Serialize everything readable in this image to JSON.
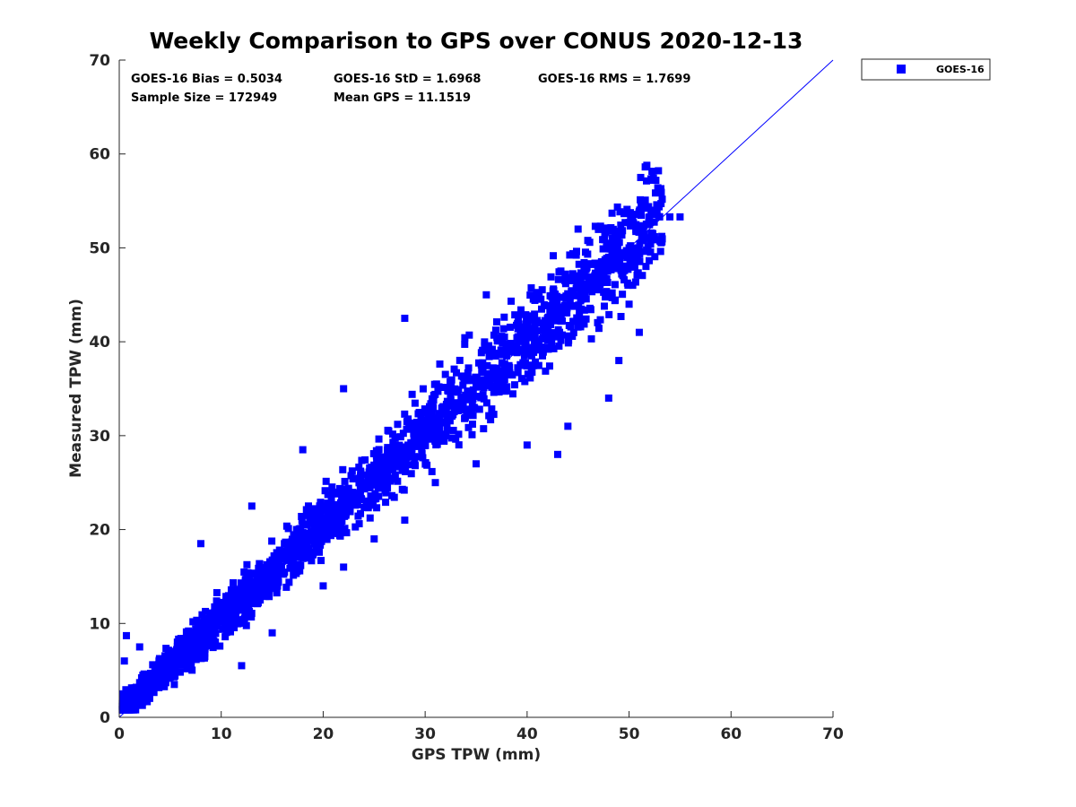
{
  "chart_data": {
    "type": "scatter",
    "title": "Weekly Comparison to GPS over CONUS 2020-12-13",
    "xlabel": "GPS TPW (mm)",
    "ylabel": "Measured TPW (mm)",
    "xlim": [
      0,
      70
    ],
    "ylim": [
      0,
      70
    ],
    "xticks": [
      "0",
      "10",
      "20",
      "30",
      "40",
      "50",
      "60",
      "70"
    ],
    "yticks": [
      "0",
      "10",
      "20",
      "30",
      "40",
      "50",
      "60",
      "70"
    ],
    "grid": false,
    "legend_position": "top-right-outside",
    "color": "#0000ff",
    "stats": {
      "bias": "GOES-16 Bias = 0.5034",
      "std": "GOES-16 StD = 1.6968",
      "rms": "GOES-16 RMS = 1.7699",
      "sample_size": "Sample Size = 172949",
      "mean_gps": "Mean GPS = 11.1519"
    },
    "series": [
      {
        "name": "GOES-16",
        "marker": "square",
        "sample_size": 172949,
        "bias": 0.5034,
        "std": 1.6968,
        "rms": 1.7699,
        "mean_x": 11.1519,
        "points_approx": [
          [
            0.5,
            1.5
          ],
          [
            1,
            2
          ],
          [
            1.5,
            2.5
          ],
          [
            2,
            2.5
          ],
          [
            3,
            3.5
          ],
          [
            4,
            4.5
          ],
          [
            5,
            5.5
          ],
          [
            6,
            6.5
          ],
          [
            8,
            8.5
          ],
          [
            10,
            10.5
          ],
          [
            12,
            12.5
          ],
          [
            15,
            15.5
          ],
          [
            18,
            18.5
          ],
          [
            20,
            20.5
          ],
          [
            22,
            22.5
          ],
          [
            25,
            25.5
          ],
          [
            28,
            28.5
          ],
          [
            30,
            30.5
          ],
          [
            33,
            33.5
          ],
          [
            35,
            35.5
          ],
          [
            38,
            38.5
          ],
          [
            40,
            40.5
          ],
          [
            42,
            42.5
          ],
          [
            45,
            46
          ],
          [
            48,
            49
          ],
          [
            50,
            50
          ],
          [
            52,
            53.3
          ],
          [
            53,
            53.3
          ],
          [
            54,
            53.3
          ],
          [
            55,
            53.3
          ],
          [
            0.5,
            6
          ],
          [
            0.7,
            8.7
          ],
          [
            2,
            7.5
          ],
          [
            8,
            18.5
          ],
          [
            13,
            22.5
          ],
          [
            18,
            28.5
          ],
          [
            22,
            35
          ],
          [
            28,
            42.5
          ],
          [
            36,
            45
          ],
          [
            45,
            52
          ],
          [
            48,
            50
          ],
          [
            43,
            28
          ],
          [
            48,
            34
          ],
          [
            49,
            38
          ],
          [
            12,
            5.5
          ],
          [
            15,
            9
          ],
          [
            20,
            14
          ],
          [
            22,
            16
          ],
          [
            25,
            19
          ],
          [
            28,
            21
          ],
          [
            31,
            25
          ],
          [
            35,
            27
          ],
          [
            40,
            29
          ],
          [
            44,
            31
          ],
          [
            50,
            44
          ],
          [
            51,
            41
          ]
        ]
      }
    ],
    "reference_line": {
      "name": "1:1 line",
      "x": [
        0,
        70
      ],
      "y": [
        0,
        70
      ]
    }
  }
}
